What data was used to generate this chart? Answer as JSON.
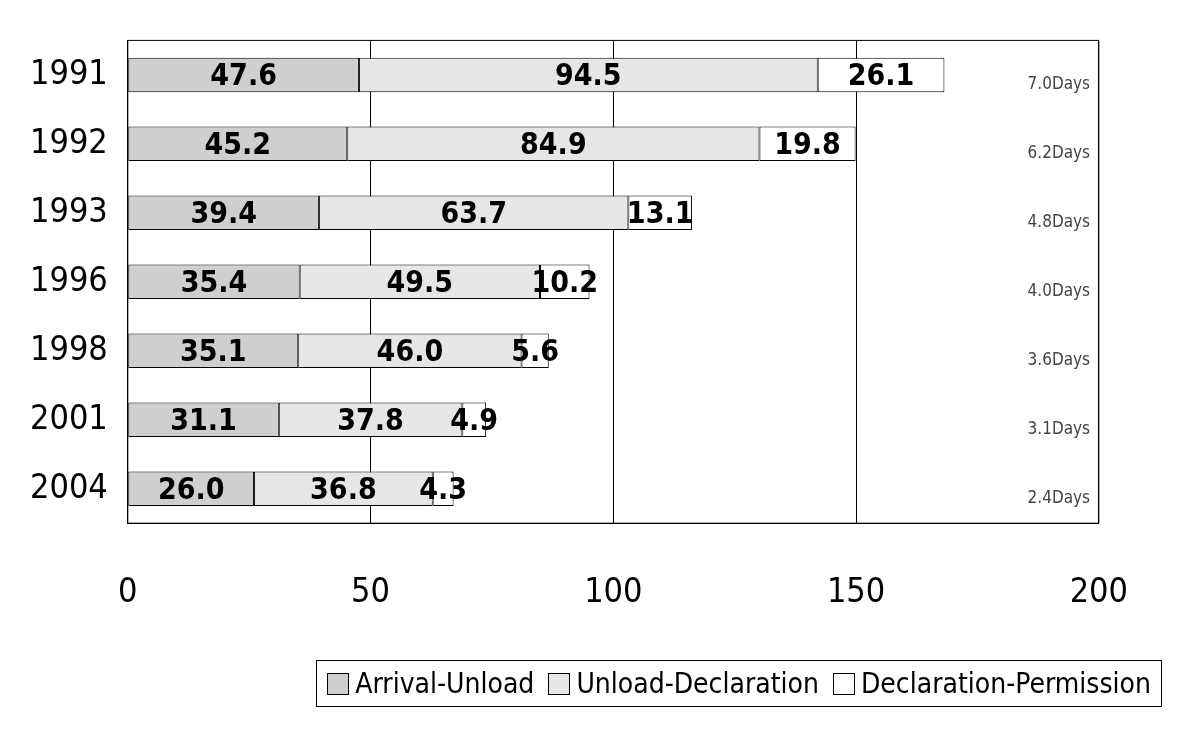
{
  "chart_data": {
    "type": "bar",
    "orientation": "horizontal",
    "stacked": true,
    "categories": [
      "1991",
      "1992",
      "1993",
      "1996",
      "1998",
      "2001",
      "2004"
    ],
    "series": [
      {
        "name": "Arrival-Unload",
        "color": "#cfcfcf",
        "values": [
          47.6,
          45.2,
          39.4,
          35.4,
          35.1,
          31.1,
          26.0
        ],
        "value_labels": [
          "47.6",
          "45.2",
          "39.4",
          "35.4",
          "35.1",
          "31.1",
          "26.0"
        ]
      },
      {
        "name": "Unload-Declaration",
        "color": "#e6e6e6",
        "values": [
          94.5,
          84.9,
          63.7,
          49.5,
          46.0,
          37.8,
          36.8
        ],
        "value_labels": [
          "94.5",
          "84.9",
          "63.7",
          "49.5",
          "46.0",
          "37.8",
          "36.8"
        ]
      },
      {
        "name": "Declaration-Permission",
        "color": "#ffffff",
        "values": [
          26.1,
          19.8,
          13.1,
          10.2,
          5.6,
          4.9,
          4.3
        ],
        "value_labels": [
          "26.1",
          "19.8",
          "13.1",
          "10.2",
          "5.6",
          "4.9",
          "4.3"
        ]
      }
    ],
    "xlim": [
      0,
      200
    ],
    "xticks": [
      0,
      50,
      100,
      150,
      200
    ],
    "grid": "x",
    "legend": "bottom",
    "annotations": [
      "7.0Days",
      "6.2Days",
      "4.8Days",
      "4.0Days",
      "3.6Days",
      "3.1Days",
      "2.4Days"
    ]
  }
}
